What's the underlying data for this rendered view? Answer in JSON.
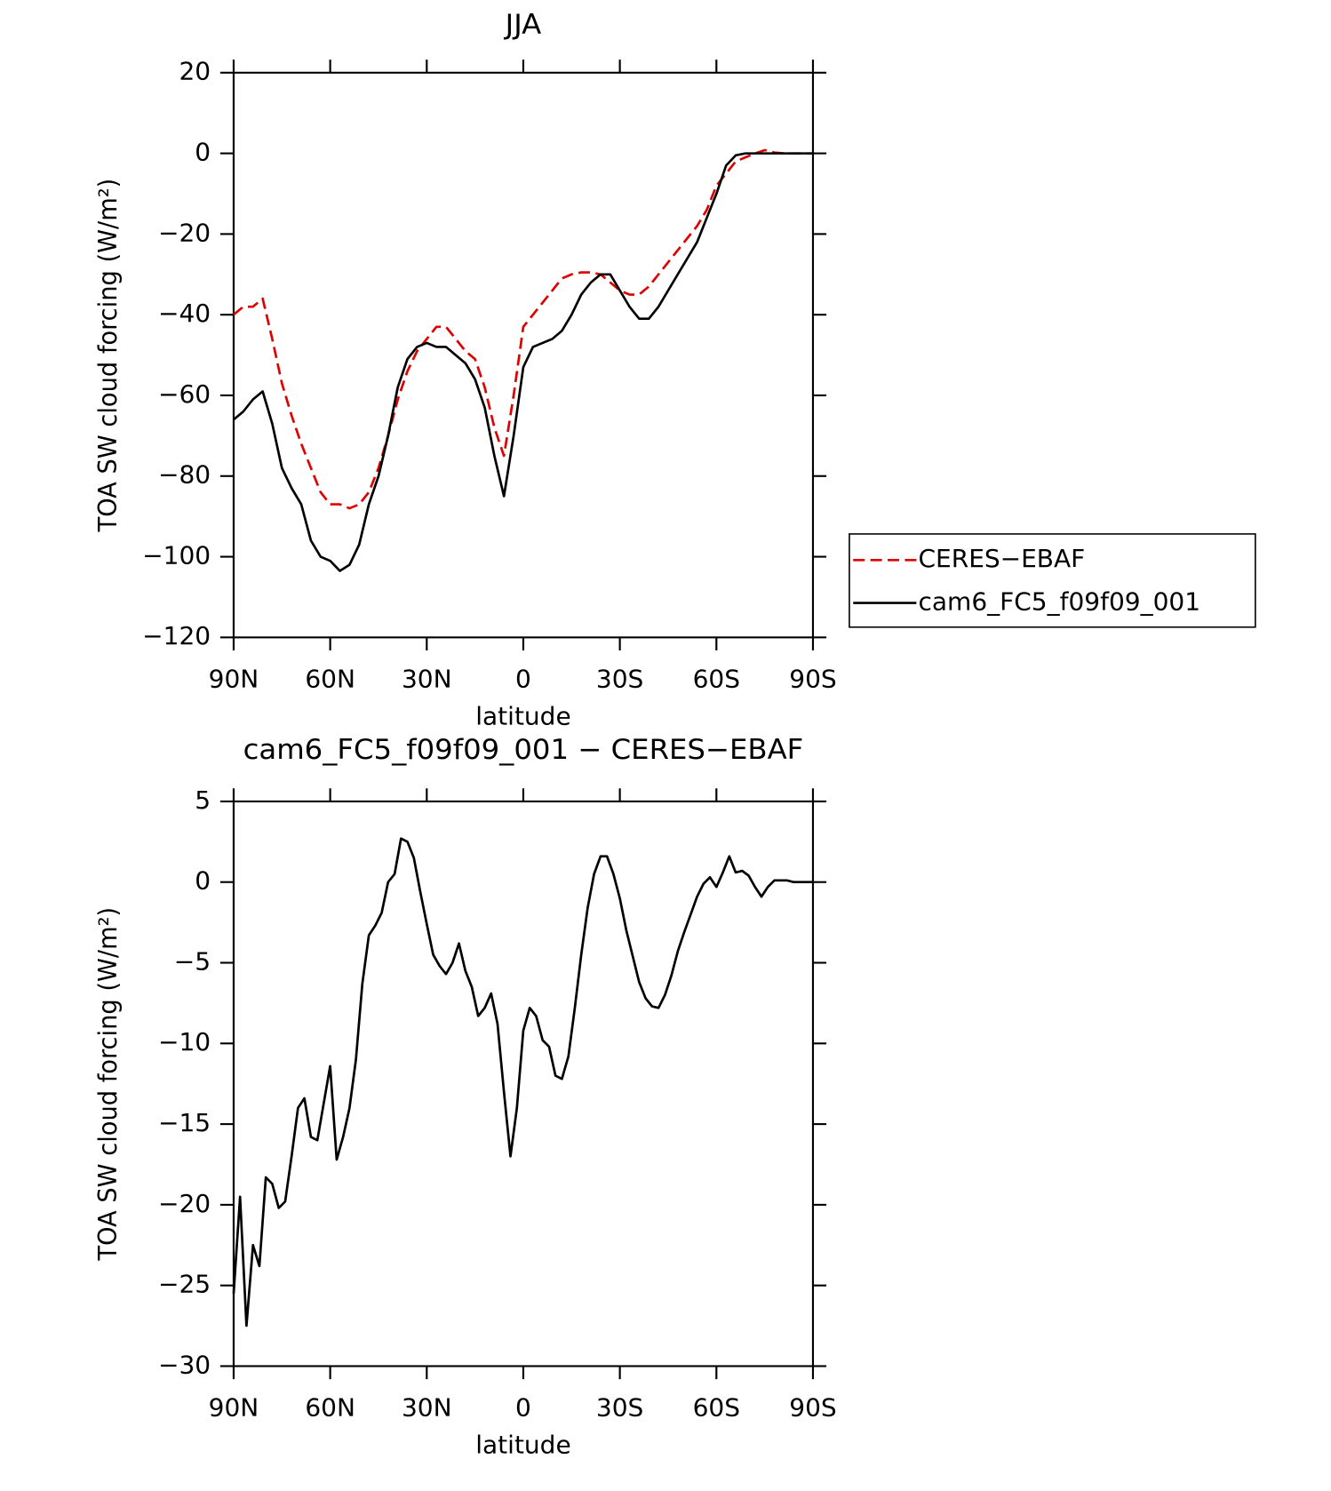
{
  "chart_data": [
    {
      "type": "line",
      "title": "JJA",
      "xlabel": "latitude",
      "ylabel": "TOA SW cloud forcing (W/m²)",
      "xlim": [
        90,
        -90
      ],
      "xticks": [
        {
          "value": 90,
          "label": "90N"
        },
        {
          "value": 60,
          "label": "60N"
        },
        {
          "value": 30,
          "label": "30N"
        },
        0,
        {
          "value": -30,
          "label": "30S"
        },
        {
          "value": -60,
          "label": "60S"
        },
        {
          "value": -90,
          "label": "90S"
        }
      ],
      "ylim": [
        -120,
        20
      ],
      "yticks": [
        20,
        0,
        {
          "value": -20,
          "label": "−20"
        },
        {
          "value": -40,
          "label": "−40"
        },
        {
          "value": -60,
          "label": "−60"
        },
        {
          "value": -80,
          "label": "−80"
        },
        {
          "value": -100,
          "label": "−100"
        },
        {
          "value": -120,
          "label": "−120"
        }
      ],
      "legend": "outside-right",
      "x": [
        90,
        87,
        84,
        81,
        78,
        75,
        72,
        69,
        66,
        63,
        60,
        57,
        54,
        51,
        48,
        45,
        42,
        39,
        36,
        33,
        30,
        27,
        24,
        21,
        18,
        15,
        12,
        9,
        6,
        3,
        0,
        -3,
        -6,
        -9,
        -12,
        -15,
        -18,
        -21,
        -24,
        -27,
        -30,
        -33,
        -36,
        -39,
        -42,
        -45,
        -48,
        -51,
        -54,
        -57,
        -60,
        -63,
        -66,
        -69,
        -72,
        -75,
        -78,
        -81,
        -84,
        -87,
        -90
      ],
      "series": [
        {
          "name": "CERES−EBAF",
          "color": "#e00000",
          "dashed": true,
          "values": [
            -40,
            -38,
            -38,
            -36,
            -46,
            -57,
            -65,
            -72,
            -78,
            -84,
            -87,
            -87,
            -88,
            -87,
            -84,
            -78,
            -70,
            -61,
            -54,
            -49,
            -46,
            -43,
            -43,
            -46,
            -49,
            -51,
            -58,
            -68,
            -75,
            -60,
            -43,
            -40,
            -37,
            -34,
            -31,
            -30,
            -29.5,
            -29.5,
            -30,
            -32,
            -34,
            -35,
            -35,
            -33,
            -30,
            -27,
            -24,
            -21,
            -18,
            -14,
            -8,
            -5,
            -2,
            -1,
            0,
            0.8,
            0.2,
            0,
            0,
            0,
            0
          ]
        },
        {
          "name": "cam6_FC5_f09f09_001",
          "color": "#000000",
          "dashed": false,
          "values": [
            -66,
            -64,
            -61,
            -59,
            -67,
            -78,
            -83,
            -87,
            -96,
            -100,
            -101,
            -103.5,
            -102,
            -97,
            -87,
            -80,
            -70,
            -58,
            -51,
            -48,
            -47,
            -48,
            -48,
            -50,
            -52,
            -56,
            -63,
            -75,
            -85,
            -70,
            -53,
            -48,
            -47,
            -46,
            -44,
            -40,
            -35,
            -32,
            -30,
            -30,
            -34,
            -38,
            -41,
            -41,
            -38,
            -34,
            -30,
            -26,
            -22,
            -16,
            -10,
            -3,
            -0.5,
            0,
            0,
            0,
            0,
            0,
            0,
            0,
            0
          ]
        }
      ]
    },
    {
      "type": "line",
      "title": "cam6_FC5_f09f09_001 − CERES−EBAF",
      "xlabel": "latitude",
      "ylabel": "TOA SW cloud forcing (W/m²)",
      "xlim": [
        90,
        -90
      ],
      "xticks": [
        {
          "value": 90,
          "label": "90N"
        },
        {
          "value": 60,
          "label": "60N"
        },
        {
          "value": 30,
          "label": "30N"
        },
        0,
        {
          "value": -30,
          "label": "30S"
        },
        {
          "value": -60,
          "label": "60S"
        },
        {
          "value": -90,
          "label": "90S"
        }
      ],
      "ylim": [
        -30,
        5
      ],
      "yticks": [
        5,
        0,
        {
          "value": -5,
          "label": "−5"
        },
        {
          "value": -10,
          "label": "−10"
        },
        {
          "value": -15,
          "label": "−15"
        },
        {
          "value": -20,
          "label": "−20"
        },
        {
          "value": -25,
          "label": "−25"
        },
        {
          "value": -30,
          "label": "−30"
        }
      ],
      "x": [
        90,
        88,
        86,
        84,
        82,
        80,
        78,
        76,
        74,
        72,
        70,
        68,
        66,
        64,
        62,
        60,
        58,
        56,
        54,
        52,
        50,
        48,
        46,
        44,
        42,
        40,
        38,
        36,
        34,
        32,
        30,
        28,
        26,
        24,
        22,
        20,
        18,
        16,
        14,
        12,
        10,
        8,
        6,
        4,
        2,
        0,
        -2,
        -4,
        -6,
        -8,
        -10,
        -12,
        -14,
        -16,
        -18,
        -20,
        -22,
        -24,
        -26,
        -28,
        -30,
        -32,
        -34,
        -36,
        -38,
        -40,
        -42,
        -44,
        -46,
        -48,
        -50,
        -52,
        -54,
        -56,
        -58,
        -60,
        -62,
        -64,
        -66,
        -68,
        -70,
        -72,
        -74,
        -76,
        -78,
        -80,
        -82,
        -84,
        -86,
        -88,
        -90
      ],
      "series": [
        {
          "color": "#000000",
          "dashed": false,
          "values": [
            -25.5,
            -19.5,
            -27.5,
            -22.5,
            -23.8,
            -18.3,
            -18.7,
            -20.2,
            -19.8,
            -17,
            -14,
            -13.4,
            -15.8,
            -16,
            -13.7,
            -11.4,
            -17.2,
            -15.8,
            -14,
            -11,
            -6.3,
            -3.3,
            -2.7,
            -1.9,
            0,
            0.5,
            2.7,
            2.5,
            1.5,
            -0.6,
            -2.6,
            -4.5,
            -5.2,
            -5.7,
            -5,
            -3.8,
            -5.5,
            -6.5,
            -8.3,
            -7.8,
            -6.9,
            -8.8,
            -13,
            -17,
            -14,
            -9.2,
            -7.8,
            -8.3,
            -9.8,
            -10.2,
            -12,
            -12.2,
            -10.8,
            -7.8,
            -4.5,
            -1.6,
            0.5,
            1.6,
            1.6,
            0.5,
            -1,
            -3,
            -4.6,
            -6.2,
            -7.2,
            -7.7,
            -7.8,
            -7,
            -5.8,
            -4.3,
            -3.1,
            -2,
            -0.9,
            -0.1,
            0.3,
            -0.3,
            0.6,
            1.6,
            0.6,
            0.7,
            0.4,
            -0.3,
            -0.9,
            -0.3,
            0.1,
            0.1,
            0.1,
            0,
            0,
            0,
            0
          ]
        }
      ]
    }
  ]
}
